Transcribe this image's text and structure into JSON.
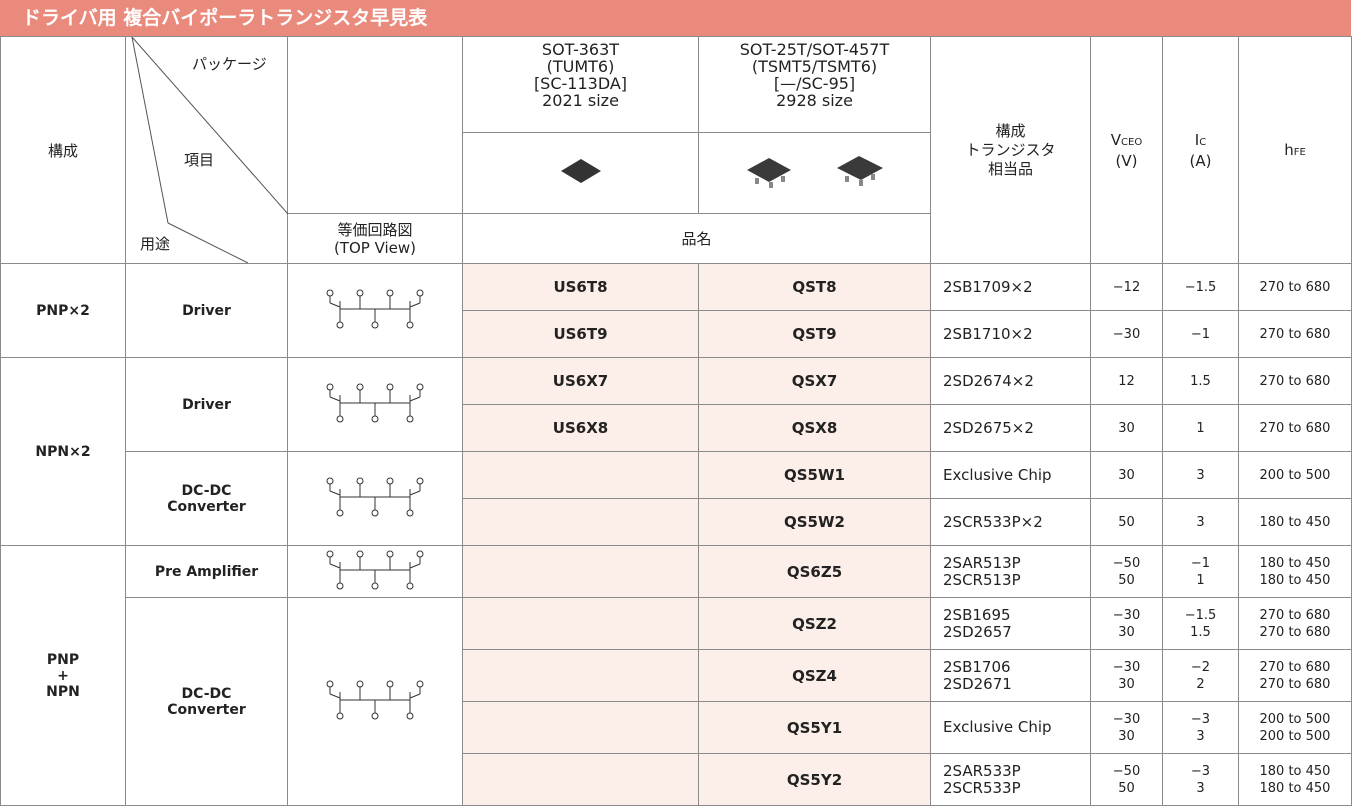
{
  "title": "ドライバ用 複合バイポーラトランジスタ早見表",
  "header": {
    "composition": "構成",
    "package": "パッケージ",
    "item": "項目",
    "application": "用途",
    "circuit": [
      "等価回路図",
      "(TOP View)"
    ],
    "packages": [
      [
        "SOT-363T",
        "(TUMT6)",
        "[SC-113DA]",
        "2021 size"
      ],
      [
        "SOT-25T/SOT-457T",
        "(TSMT5/TSMT6)",
        "[—/SC-95]",
        "2928 size"
      ]
    ],
    "part_name": "品名",
    "equivalent": [
      "構成",
      "トランジスタ",
      "相当品"
    ],
    "vceo": {
      "symbol": "V",
      "sub": "CEO",
      "unit": "(V)"
    },
    "ic": {
      "symbol": "I",
      "sub": "C",
      "unit": "(A)"
    },
    "hfe": {
      "symbol": "h",
      "sub": "FE"
    }
  },
  "groups": [
    {
      "composition": [
        "PNP×2"
      ],
      "applications": [
        {
          "name": [
            "Driver"
          ],
          "rows": [
            {
              "us6": "US6T8",
              "qs": "QST8",
              "equivalent": [
                "2SB1709×2"
              ],
              "vceo": [
                "−12"
              ],
              "ic": [
                "−1.5"
              ],
              "hfe": [
                "270 to 680"
              ]
            },
            {
              "us6": "US6T9",
              "qs": "QST9",
              "equivalent": [
                "2SB1710×2"
              ],
              "vceo": [
                "−30"
              ],
              "ic": [
                "−1"
              ],
              "hfe": [
                "270 to 680"
              ]
            }
          ]
        }
      ]
    },
    {
      "composition": [
        "NPN×2"
      ],
      "applications": [
        {
          "name": [
            "Driver"
          ],
          "rows": [
            {
              "us6": "US6X7",
              "qs": "QSX7",
              "equivalent": [
                "2SD2674×2"
              ],
              "vceo": [
                "12"
              ],
              "ic": [
                "1.5"
              ],
              "hfe": [
                "270 to 680"
              ]
            },
            {
              "us6": "US6X8",
              "qs": "QSX8",
              "equivalent": [
                "2SD2675×2"
              ],
              "vceo": [
                "30"
              ],
              "ic": [
                "1"
              ],
              "hfe": [
                "270 to 680"
              ]
            }
          ]
        },
        {
          "name": [
            "DC-DC",
            "Converter"
          ],
          "rows": [
            {
              "qs": "QS5W1",
              "equivalent": [
                "Exclusive Chip"
              ],
              "vceo": [
                "30"
              ],
              "ic": [
                "3"
              ],
              "hfe": [
                "200 to 500"
              ]
            },
            {
              "qs": "QS5W2",
              "equivalent": [
                "2SCR533P×2"
              ],
              "vceo": [
                "50"
              ],
              "ic": [
                "3"
              ],
              "hfe": [
                "180 to 450"
              ]
            }
          ]
        }
      ]
    },
    {
      "composition": [
        "PNP",
        "+",
        "NPN"
      ],
      "applications": [
        {
          "name": [
            "Pre Amplifier"
          ],
          "rows": [
            {
              "qs": "QS6Z5",
              "equivalent": [
                "2SAR513P",
                "2SCR513P"
              ],
              "vceo": [
                "−50",
                "50"
              ],
              "ic": [
                "−1",
                "1"
              ],
              "hfe": [
                "180 to 450",
                "180 to 450"
              ]
            }
          ]
        },
        {
          "name": [
            "DC-DC",
            "Converter"
          ],
          "rows": [
            {
              "qs": "QSZ2",
              "equivalent": [
                "2SB1695",
                "2SD2657"
              ],
              "vceo": [
                "−30",
                "30"
              ],
              "ic": [
                "−1.5",
                "1.5"
              ],
              "hfe": [
                "270 to 680",
                "270 to 680"
              ]
            },
            {
              "qs": "QSZ4",
              "equivalent": [
                "2SB1706",
                "2SD2671"
              ],
              "vceo": [
                "−30",
                "30"
              ],
              "ic": [
                "−2",
                "2"
              ],
              "hfe": [
                "270 to 680",
                "270 to 680"
              ]
            },
            {
              "qs": "QS5Y1",
              "equivalent": [
                "Exclusive Chip"
              ],
              "vceo": [
                "−30",
                "30"
              ],
              "ic": [
                "−3",
                "3"
              ],
              "hfe": [
                "200 to 500",
                "200 to 500"
              ]
            },
            {
              "qs": "QS5Y2",
              "equivalent": [
                "2SAR533P",
                "2SCR533P"
              ],
              "vceo": [
                "−50",
                "50"
              ],
              "ic": [
                "−3",
                "3"
              ],
              "hfe": [
                "180 to 450",
                "180 to 450"
              ]
            }
          ]
        }
      ]
    }
  ]
}
